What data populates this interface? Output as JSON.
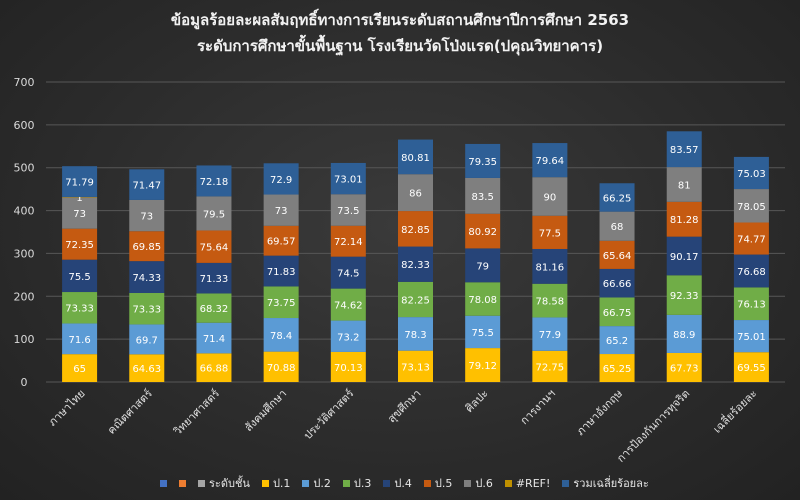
{
  "title_line1": "ข้อมูลร้อยละผลสัมฤทธิ์ทางการเรียนระดับสถานศึกษาปีการศึกษา  2563",
  "title_line2": "ระดับการศึกษาขั้นพื้นฐาน  โรงเรียนวัดโป่งแรด(ปคุณวิทยาคาร)",
  "chart_data": {
    "type": "bar",
    "stacked": true,
    "title": "ข้อมูลร้อยละผลสัมฤทธิ์ทางการเรียนระดับสถานศึกษาปีการศึกษา  2563 ระดับการศึกษาขั้นพื้นฐาน  โรงเรียนวัดโป่งแรด(ปคุณวิทยาคาร)",
    "categories": [
      "ภาษาไทย",
      "คณิตศาสตร์",
      "วิทยาศาสตร์",
      "สังคมศึกษา",
      "ประวัติศาสตร์",
      "สุขศึกษา",
      "ศิลปะ",
      "การงานฯ",
      "ภาษาอังกฤษ",
      "การป้องกันการทุจริต",
      "เฉลี่ยร้อยละ"
    ],
    "ylim": [
      0,
      700
    ],
    "yticks": [
      0,
      100,
      200,
      300,
      400,
      500,
      600,
      700
    ],
    "grid": true,
    "legend_position": "bottom",
    "series": [
      {
        "name": "ป.1",
        "color": "#ffc000",
        "values": [
          65,
          64.63,
          66.88,
          70.88,
          70.13,
          73.13,
          79.12,
          72.75,
          65.25,
          67.73,
          69.55
        ]
      },
      {
        "name": "ป.2",
        "color": "#5b9bd5",
        "values": [
          71.6,
          69.7,
          71.4,
          78.4,
          73.2,
          78.3,
          75.5,
          77.9,
          65.2,
          88.9,
          75.01
        ]
      },
      {
        "name": "ป.3",
        "color": "#70ad47",
        "values": [
          73.33,
          73.33,
          68.32,
          73.75,
          74.62,
          82.25,
          78.08,
          78.58,
          66.75,
          92.33,
          76.13
        ]
      },
      {
        "name": "ป.4",
        "color": "#264478",
        "values": [
          75.5,
          74.33,
          71.33,
          71.83,
          74.5,
          82.33,
          79,
          81.16,
          66.66,
          90.17,
          76.68
        ]
      },
      {
        "name": "ป.5",
        "color": "#c55a11",
        "values": [
          72.35,
          69.85,
          75.64,
          69.57,
          72.14,
          82.85,
          80.92,
          77.5,
          65.64,
          81.28,
          74.77
        ]
      },
      {
        "name": "ป.6",
        "color": "#7f7f7f",
        "values": [
          73,
          73,
          79.5,
          73,
          73.5,
          86,
          83.5,
          90,
          68,
          81,
          78.05
        ]
      },
      {
        "name": "#REF!",
        "color": "#bf9000",
        "values": [
          1,
          null,
          null,
          null,
          null,
          null,
          null,
          null,
          null,
          null,
          null
        ]
      },
      {
        "name": "รวมเฉลี่ยร้อยละ",
        "color": "#2e5f96",
        "values": [
          71.79,
          71.47,
          72.18,
          72.9,
          73.01,
          80.81,
          79.35,
          79.64,
          66.25,
          83.57,
          75.03
        ]
      }
    ],
    "legend": [
      {
        "label": "",
        "color": "#4472c4"
      },
      {
        "label": "",
        "color": "#ed7d31"
      },
      {
        "label": "ระดับชั้น",
        "color": "#a5a5a5"
      },
      {
        "label": "ป.1",
        "color": "#ffc000"
      },
      {
        "label": "ป.2",
        "color": "#5b9bd5"
      },
      {
        "label": "ป.3",
        "color": "#70ad47"
      },
      {
        "label": "ป.4",
        "color": "#264478"
      },
      {
        "label": "ป.5",
        "color": "#c55a11"
      },
      {
        "label": "ป.6",
        "color": "#7f7f7f"
      },
      {
        "label": "#REF!",
        "color": "#bf9000"
      },
      {
        "label": "รวมเฉลี่ยร้อยละ",
        "color": "#2e5f96"
      }
    ]
  }
}
